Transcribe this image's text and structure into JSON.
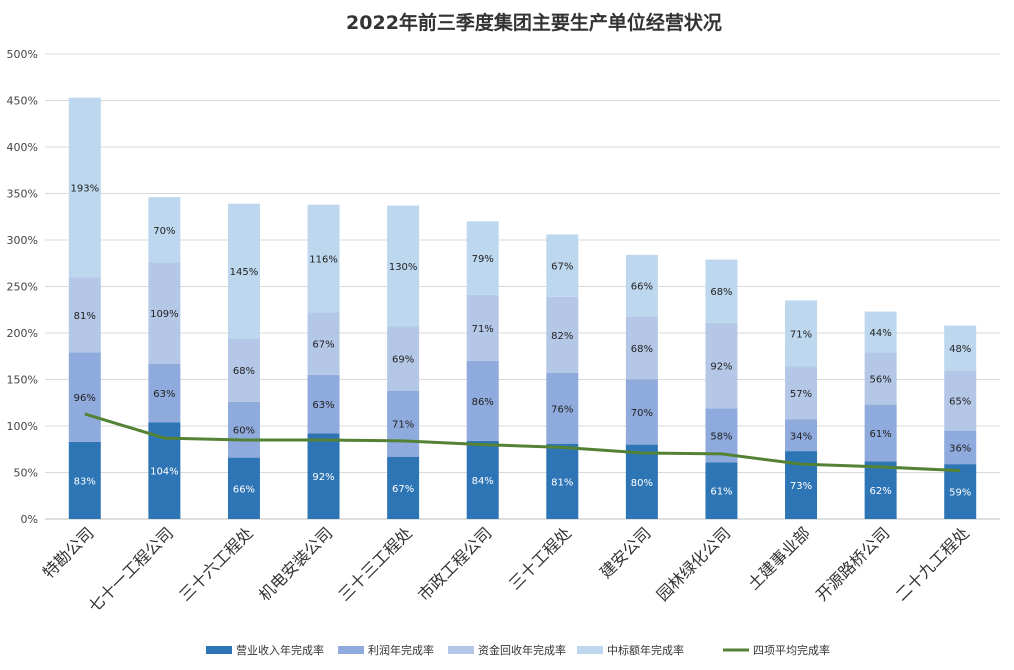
{
  "chart_data": {
    "type": "bar",
    "stacked": true,
    "title": "2022年前三季度集团主要生产单位经营状况",
    "xlabel": "",
    "ylabel": "",
    "ylim": [
      0,
      500
    ],
    "y_ticks": [
      "0%",
      "50%",
      "100%",
      "150%",
      "200%",
      "250%",
      "300%",
      "350%",
      "400%",
      "450%",
      "500%"
    ],
    "grid": true,
    "legend_position": "bottom",
    "categories": [
      "特勘公司",
      "七十一工程公司",
      "三十六工程处",
      "机电安装公司",
      "三十三工程处",
      "市政工程公司",
      "三十工程处",
      "建安公司",
      "园林绿化公司",
      "土建事业部",
      "开源路桥公司",
      "二十九工程处"
    ],
    "series": [
      {
        "name": "营业收入年完成率",
        "color": "#2e75b6",
        "values": [
          83,
          104,
          66,
          92,
          67,
          84,
          81,
          80,
          61,
          73,
          62,
          59
        ]
      },
      {
        "name": "利润年完成率",
        "color": "#8faadc",
        "values": [
          96,
          63,
          60,
          63,
          71,
          86,
          76,
          70,
          58,
          34,
          61,
          36
        ]
      },
      {
        "name": "资金回收年完成率",
        "color": "#b4c7e7",
        "values": [
          81,
          109,
          68,
          67,
          69,
          71,
          82,
          68,
          92,
          57,
          56,
          65
        ]
      },
      {
        "name": "中标额年完成率",
        "color": "#bdd7ee",
        "values": [
          193,
          70,
          145,
          116,
          130,
          79,
          67,
          66,
          68,
          71,
          44,
          48
        ]
      }
    ],
    "value_labels": [
      [
        "83%",
        "104%",
        "66%",
        "92%",
        "67%",
        "84%",
        "81%",
        "80%",
        "61%",
        "73%",
        "62%",
        "59%"
      ],
      [
        "96%",
        "63%",
        "60%",
        "63%",
        "71%",
        "86%",
        "76%",
        "70%",
        "58%",
        "34%",
        "61%",
        "36%"
      ],
      [
        "81%",
        "109%",
        "68%",
        "67%",
        "69%",
        "71%",
        "82%",
        "68%",
        "92%",
        "57%",
        "56%",
        "65%"
      ],
      [
        "193%",
        "70%",
        "145%",
        "116%",
        "130%",
        "79%",
        "67%",
        "66%",
        "68%",
        "71%",
        "44%",
        "48%"
      ]
    ],
    "line_series": {
      "name": "四项平均完成率",
      "color": "#548235",
      "values": [
        113,
        87,
        85,
        85,
        84,
        80,
        77,
        71,
        70,
        59,
        56,
        52
      ]
    }
  }
}
